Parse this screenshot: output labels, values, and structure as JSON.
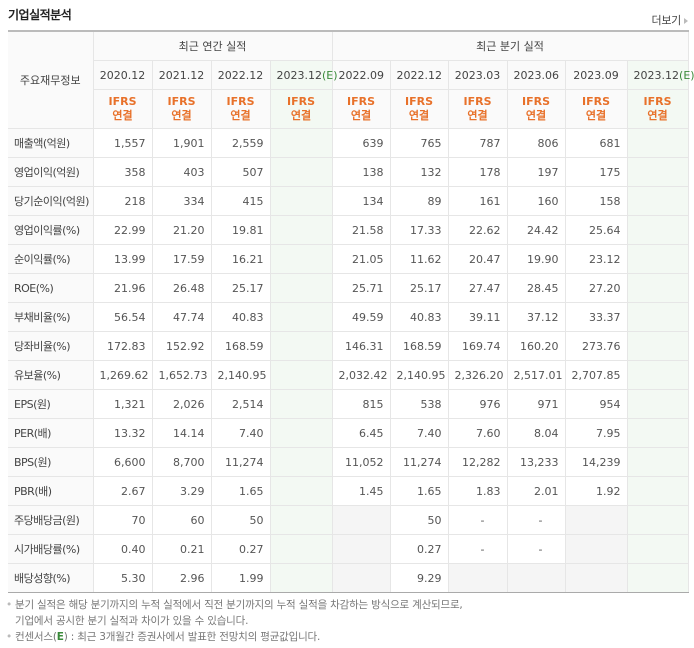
{
  "header": {
    "title": "기업실적분석",
    "more_label": "더보기"
  },
  "table": {
    "row_header": "주요재무정보",
    "group_annual": "최근 연간 실적",
    "group_quarter": "최근 분기 실적",
    "annual_periods": [
      "2020.12",
      "2021.12",
      "2022.12",
      "2023.12"
    ],
    "quarter_periods": [
      "2022.09",
      "2022.12",
      "2023.03",
      "2023.06",
      "2023.09",
      "2023.12"
    ],
    "estimate_suffix": "(E)",
    "ifrs_line1": "IFRS",
    "ifrs_line2": "연결",
    "rows": [
      {
        "label": "매출액(억원)",
        "annual": [
          "1,557",
          "1,901",
          "2,559",
          ""
        ],
        "quarter": [
          "639",
          "765",
          "787",
          "806",
          "681",
          ""
        ]
      },
      {
        "label": "영업이익(억원)",
        "annual": [
          "358",
          "403",
          "507",
          ""
        ],
        "quarter": [
          "138",
          "132",
          "178",
          "197",
          "175",
          ""
        ]
      },
      {
        "label": "당기순이익(억원)",
        "annual": [
          "218",
          "334",
          "415",
          ""
        ],
        "quarter": [
          "134",
          "89",
          "161",
          "160",
          "158",
          ""
        ]
      },
      {
        "label": "영업이익률(%)",
        "annual": [
          "22.99",
          "21.20",
          "19.81",
          ""
        ],
        "quarter": [
          "21.58",
          "17.33",
          "22.62",
          "24.42",
          "25.64",
          ""
        ]
      },
      {
        "label": "순이익률(%)",
        "annual": [
          "13.99",
          "17.59",
          "16.21",
          ""
        ],
        "quarter": [
          "21.05",
          "11.62",
          "20.47",
          "19.90",
          "23.12",
          ""
        ]
      },
      {
        "label": "ROE(%)",
        "annual": [
          "21.96",
          "26.48",
          "25.17",
          ""
        ],
        "quarter": [
          "25.71",
          "25.17",
          "27.47",
          "28.45",
          "27.20",
          ""
        ]
      },
      {
        "label": "부채비율(%)",
        "annual": [
          "56.54",
          "47.74",
          "40.83",
          ""
        ],
        "quarter": [
          "49.59",
          "40.83",
          "39.11",
          "37.12",
          "33.37",
          ""
        ]
      },
      {
        "label": "당좌비율(%)",
        "annual": [
          "172.83",
          "152.92",
          "168.59",
          ""
        ],
        "quarter": [
          "146.31",
          "168.59",
          "169.74",
          "160.20",
          "273.76",
          ""
        ]
      },
      {
        "label": "유보율(%)",
        "annual": [
          "1,269.62",
          "1,652.73",
          "2,140.95",
          ""
        ],
        "quarter": [
          "2,032.42",
          "2,140.95",
          "2,326.20",
          "2,517.01",
          "2,707.85",
          ""
        ]
      },
      {
        "label": "EPS(원)",
        "annual": [
          "1,321",
          "2,026",
          "2,514",
          ""
        ],
        "quarter": [
          "815",
          "538",
          "976",
          "971",
          "954",
          ""
        ]
      },
      {
        "label": "PER(배)",
        "annual": [
          "13.32",
          "14.14",
          "7.40",
          ""
        ],
        "quarter": [
          "6.45",
          "7.40",
          "7.60",
          "8.04",
          "7.95",
          ""
        ]
      },
      {
        "label": "BPS(원)",
        "annual": [
          "6,600",
          "8,700",
          "11,274",
          ""
        ],
        "quarter": [
          "11,052",
          "11,274",
          "12,282",
          "13,233",
          "14,239",
          ""
        ]
      },
      {
        "label": "PBR(배)",
        "annual": [
          "2.67",
          "3.29",
          "1.65",
          ""
        ],
        "quarter": [
          "1.45",
          "1.65",
          "1.83",
          "2.01",
          "1.92",
          ""
        ]
      },
      {
        "label": "주당배당금(원)",
        "annual": [
          "70",
          "60",
          "50",
          ""
        ],
        "quarter": [
          "",
          "50",
          "-",
          "-",
          "",
          ""
        ]
      },
      {
        "label": "시가배당률(%)",
        "annual": [
          "0.40",
          "0.21",
          "0.27",
          ""
        ],
        "quarter": [
          "",
          "0.27",
          "-",
          "-",
          "",
          ""
        ]
      },
      {
        "label": "배당성향(%)",
        "annual": [
          "5.30",
          "2.96",
          "1.99",
          ""
        ],
        "quarter": [
          "",
          "9.29",
          "",
          "",
          "",
          ""
        ]
      }
    ]
  },
  "notes": {
    "line1": "분기 실적은 해당 분기까지의 누적 실적에서 직전 분기까지의 누적 실적을 차감하는 방식으로 계산되므로,",
    "line2": "기업에서 공시한 분기 실적과 차이가 있을 수 있습니다.",
    "line3_prefix": "컨센서스(",
    "line3_e": "E",
    "line3_suffix": ") : 최근 3개월간 증권사에서 발표한 전망치의 평균값입니다."
  }
}
